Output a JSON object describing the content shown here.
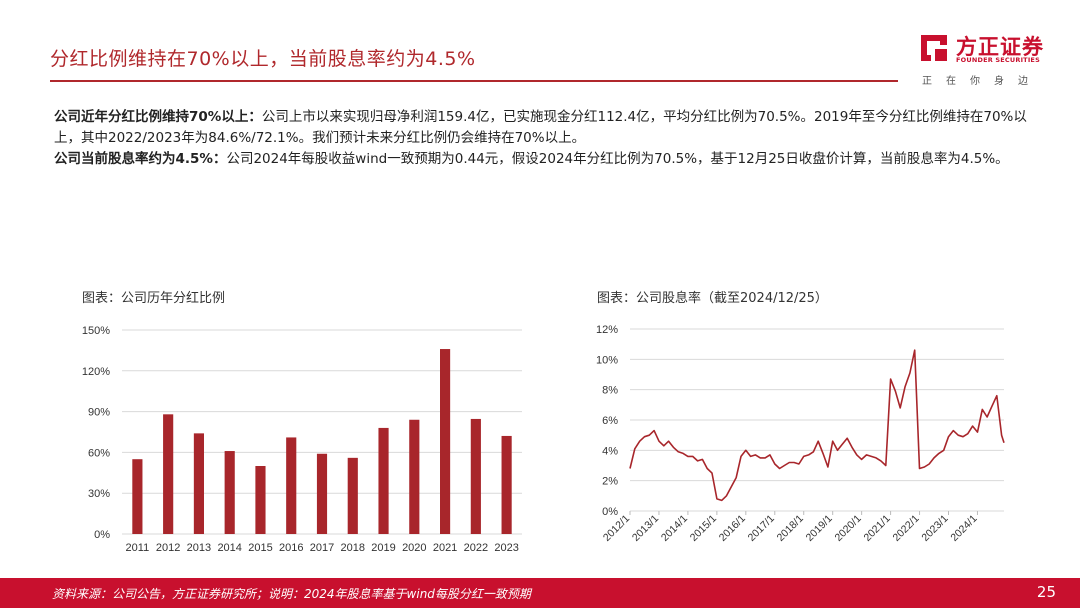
{
  "header": {
    "title": "分红比例维持在70%以上，当前股息率约为4.5%",
    "logo_cn": "方正证券",
    "logo_en": "FOUNDER SECURITIES",
    "logo_slogan": "正在你身边",
    "brand_color": "#c8102e"
  },
  "body": {
    "p1_bold": "公司近年分红比例维持70%以上：",
    "p1_text": "公司上市以来实现归母净利润159.4亿，已实施现金分红112.4亿，平均分红比例为70.5%。2019年至今分红比例维持在70%以上，其中2022/2023年为84.6%/72.1%。我们预计未来分红比例仍会维持在70%以上。",
    "p2_bold": "公司当前股息率约为4.5%：",
    "p2_text": "公司2024年每股收益wind一致预期为0.44元，假设2024年分红比例为70.5%，基于12月25日收盘价计算，当前股息率为4.5%。"
  },
  "charts": {
    "left_title": "图表：公司历年分红比例",
    "right_title": "图表：公司股息率（截至2024/12/25）"
  },
  "chart_data": [
    {
      "type": "bar",
      "title": "图表：公司历年分红比例",
      "categories": [
        "2011",
        "2012",
        "2013",
        "2014",
        "2015",
        "2016",
        "2017",
        "2018",
        "2019",
        "2020",
        "2021",
        "2022",
        "2023"
      ],
      "values": [
        55,
        88,
        74,
        61,
        50,
        71,
        59,
        56,
        78,
        84,
        136,
        84.6,
        72.1
      ],
      "ylim": [
        0,
        150
      ],
      "yticks": [
        "0%",
        "30%",
        "60%",
        "90%",
        "120%",
        "150%"
      ],
      "ytick_values": [
        0,
        30,
        60,
        90,
        120,
        150
      ],
      "grid": true,
      "color": "#a8262b"
    },
    {
      "type": "line",
      "title": "图表：公司股息率（截至2024/12/25）",
      "x": [
        "2012/1",
        "2012/3",
        "2012/5",
        "2012/7",
        "2012/9",
        "2012/11",
        "2013/1",
        "2013/3",
        "2013/5",
        "2013/7",
        "2013/9",
        "2013/11",
        "2014/1",
        "2014/3",
        "2014/5",
        "2014/7",
        "2014/9",
        "2014/11",
        "2015/1",
        "2015/3",
        "2015/5",
        "2015/7",
        "2015/9",
        "2015/11",
        "2016/1",
        "2016/3",
        "2016/5",
        "2016/7",
        "2016/9",
        "2016/11",
        "2017/1",
        "2017/3",
        "2017/5",
        "2017/7",
        "2017/9",
        "2017/11",
        "2018/1",
        "2018/3",
        "2018/5",
        "2018/7",
        "2018/9",
        "2018/11",
        "2019/1",
        "2019/3",
        "2019/5",
        "2019/7",
        "2019/9",
        "2019/11",
        "2020/1",
        "2020/3",
        "2020/5",
        "2020/7",
        "2020/9",
        "2020/11",
        "2021/1",
        "2021/3",
        "2021/5",
        "2021/7",
        "2021/9",
        "2021/11",
        "2022/1",
        "2022/3",
        "2022/5",
        "2022/7",
        "2022/9",
        "2022/11",
        "2023/1",
        "2023/3",
        "2023/5",
        "2023/7",
        "2023/9",
        "2023/11",
        "2024/1",
        "2024/3",
        "2024/5",
        "2024/7",
        "2024/9",
        "2024/11",
        "2024/12"
      ],
      "values": [
        2.8,
        4.1,
        4.6,
        4.9,
        5.0,
        5.3,
        4.6,
        4.3,
        4.6,
        4.2,
        3.9,
        3.8,
        3.6,
        3.6,
        3.3,
        3.4,
        2.8,
        2.5,
        0.8,
        0.7,
        1.0,
        1.6,
        2.2,
        3.6,
        4.0,
        3.6,
        3.7,
        3.5,
        3.5,
        3.7,
        3.1,
        2.8,
        3.0,
        3.2,
        3.2,
        3.1,
        3.6,
        3.7,
        3.9,
        4.6,
        3.8,
        2.9,
        4.6,
        4.0,
        4.4,
        4.8,
        4.2,
        3.7,
        3.4,
        3.7,
        3.6,
        3.5,
        3.3,
        3.0,
        8.7,
        7.9,
        6.8,
        8.2,
        9.1,
        10.6,
        2.8,
        2.9,
        3.1,
        3.5,
        3.8,
        4.0,
        4.9,
        5.3,
        5.0,
        4.9,
        5.1,
        5.6,
        5.2,
        6.7,
        6.2,
        6.9,
        7.6,
        5.0,
        4.5
      ],
      "xticks": [
        "2012/1",
        "2013/1",
        "2014/1",
        "2015/1",
        "2016/1",
        "2017/1",
        "2018/1",
        "2019/1",
        "2020/1",
        "2021/1",
        "2022/1",
        "2023/1",
        "2024/1"
      ],
      "ylim": [
        0,
        12
      ],
      "yticks": [
        "0%",
        "2%",
        "4%",
        "6%",
        "8%",
        "10%",
        "12%"
      ],
      "ytick_values": [
        0,
        2,
        4,
        6,
        8,
        10,
        12
      ],
      "grid": true,
      "color": "#a8262b"
    }
  ],
  "footer": {
    "note": "资料来源：公司公告，方正证券研究所；说明：2024年股息率基于wind每股分红一致预期",
    "page": "25"
  }
}
